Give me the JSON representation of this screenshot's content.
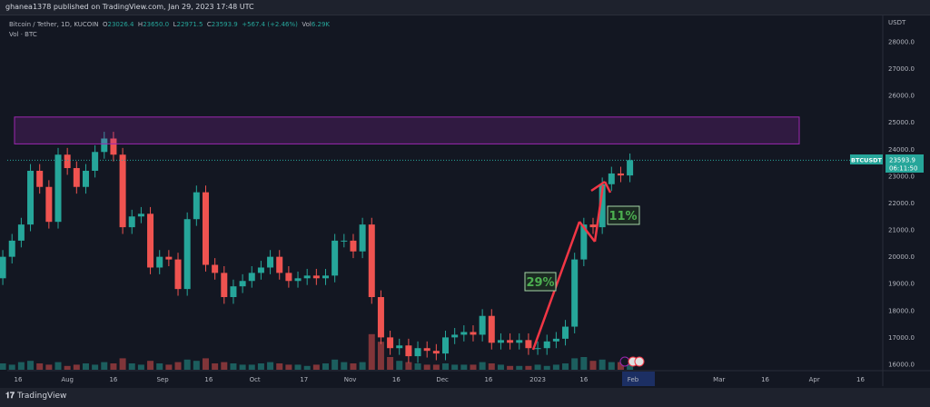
{
  "header": {
    "published": "ghanea1378 published on TradingView.com, Jan 29, 2023 17:48 UTC"
  },
  "legend": {
    "symbol": "Bitcoin / Tether, 1D, KUCOIN",
    "o_label": "O",
    "o": "23026.4",
    "h_label": "H",
    "h": "23650.0",
    "l_label": "L",
    "l": "22971.5",
    "c_label": "C",
    "c": "23593.9",
    "change": "+567.4 (+2.46%)",
    "vol_label": "Vol",
    "vol": "6.29K",
    "vol_indicator": "Vol · BTC"
  },
  "price_tag": {
    "symbol": "BTCUSDT",
    "price": "23593.9",
    "countdown": "06:11:50"
  },
  "annotations": {
    "gain1": "29%",
    "gain2": "11%"
  },
  "footer": {
    "brand": "TradingView"
  },
  "colors": {
    "up": "#26a69a",
    "down": "#ef5350",
    "zone": "#9c27b0",
    "arrow": "#f23645",
    "label": "#4caf50"
  },
  "chart_data": {
    "type": "candlestick",
    "currency": "USDT",
    "y_ticks": [
      "16000.0",
      "17000.0",
      "18000.0",
      "19000.0",
      "20000.0",
      "21000.0",
      "22000.0",
      "23000.0",
      "24000.0",
      "25000.0",
      "26000.0",
      "27000.0",
      "28000.0"
    ],
    "x_ticks": [
      "16",
      "Aug",
      "16",
      "Sep",
      "16",
      "Oct",
      "17",
      "Nov",
      "16",
      "Dec",
      "16",
      "2023",
      "16",
      "Feb",
      "Mar",
      "16",
      "Apr",
      "16"
    ],
    "zone": {
      "from_price": 24200,
      "to_price": 25200
    },
    "step_days": 3,
    "start": "2022-07-11",
    "closes": [
      20000,
      20600,
      21200,
      23200,
      22600,
      21300,
      23800,
      23300,
      22600,
      23200,
      23900,
      24400,
      23800,
      21100,
      21500,
      21600,
      19600,
      20000,
      19900,
      18800,
      21400,
      22400,
      19700,
      19400,
      18500,
      18900,
      19100,
      19400,
      19600,
      20000,
      19400,
      19100,
      19200,
      19300,
      19200,
      19300,
      20600,
      20600,
      20200,
      21200,
      18500,
      17000,
      16600,
      16700,
      16300,
      16600,
      16500,
      16400,
      17000,
      17100,
      17200,
      17100,
      17800,
      16800,
      16900,
      16800,
      16900,
      16600,
      16600,
      16850,
      16950,
      17400,
      19900,
      21200,
      21100,
      22700,
      23100,
      23026,
      23594
    ],
    "volumes": [
      5,
      4,
      6,
      7,
      5,
      4,
      6,
      3,
      4,
      5,
      4,
      6,
      5,
      9,
      5,
      4,
      7,
      5,
      4,
      6,
      8,
      7,
      9,
      5,
      6,
      5,
      4,
      4,
      5,
      6,
      5,
      4,
      4,
      3,
      4,
      5,
      8,
      6,
      5,
      6,
      28,
      22,
      10,
      7,
      6,
      5,
      4,
      4,
      5,
      4,
      4,
      4,
      6,
      5,
      4,
      3,
      3,
      3,
      4,
      3,
      4,
      5,
      9,
      10,
      7,
      8,
      6,
      6,
      6
    ]
  }
}
